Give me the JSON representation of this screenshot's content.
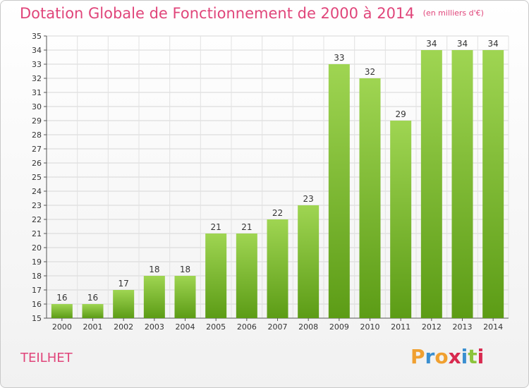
{
  "header": {
    "title": "Dotation Globale de Fonctionnement de 2000 à 2014",
    "unit": "(en milliers d'€)"
  },
  "footer": {
    "commune": "TEILHET",
    "logo_text": "Proxiti"
  },
  "colors": {
    "title": "#e0457a",
    "bar_light": "#9fd552",
    "bar_dark": "#5c9c16",
    "logo_letters": [
      "#f0a030",
      "#3a8fd0",
      "#f0a030",
      "#d8294f",
      "#3a8fd0",
      "#8cc43c",
      "#d8294f"
    ]
  },
  "chart_data": {
    "type": "bar",
    "categories": [
      "2000",
      "2001",
      "2002",
      "2003",
      "2004",
      "2005",
      "2006",
      "2007",
      "2008",
      "2009",
      "2010",
      "2011",
      "2012",
      "2013",
      "2014"
    ],
    "values": [
      16,
      16,
      17,
      18,
      18,
      21,
      21,
      22,
      23,
      33,
      32,
      29,
      34,
      34,
      34
    ],
    "title": "Dotation Globale de Fonctionnement de 2000 à 2014",
    "ylim": [
      15,
      35
    ],
    "yticks": [
      15,
      16,
      17,
      18,
      19,
      20,
      21,
      22,
      23,
      24,
      25,
      26,
      27,
      28,
      29,
      30,
      31,
      32,
      33,
      34,
      35
    ],
    "grid": true,
    "data_labels": true
  }
}
